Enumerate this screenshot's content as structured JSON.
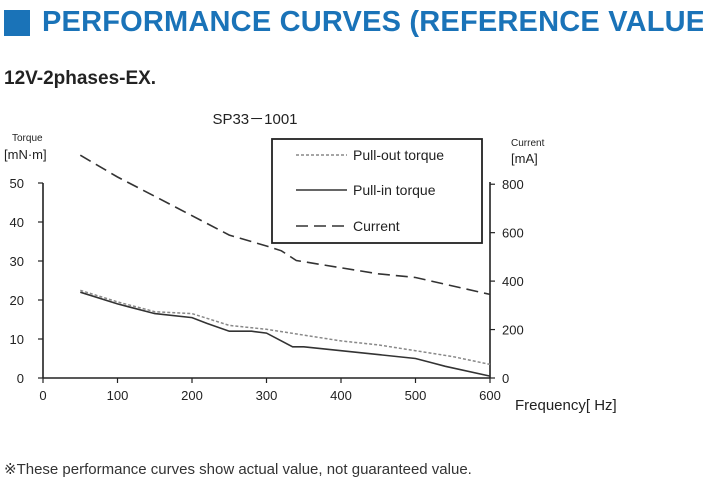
{
  "header": {
    "title": "PERFORMANCE CURVES (REFERENCE VALUE)",
    "accent_color": "#1a73b8"
  },
  "subtitle": "12V-2phases-EX.",
  "footnote": "※These performance curves show actual value, not guaranteed value.",
  "chart_data": {
    "type": "line",
    "title": "SP33－1001",
    "xlabel": "Frequency[ Hz]",
    "ylabel_left": {
      "name": "Torque",
      "unit": "[mN·m]"
    },
    "ylabel_right": {
      "name": "Current",
      "unit": "[mA]"
    },
    "xlim": [
      0,
      600
    ],
    "ylim_left": [
      0,
      50
    ],
    "ylim_right": [
      0,
      900
    ],
    "x_ticks": [
      0,
      100,
      200,
      300,
      400,
      500,
      600
    ],
    "y_left_ticks": [
      0,
      10,
      20,
      30,
      40,
      50
    ],
    "y_right_ticks": [
      0,
      200,
      400,
      600,
      800
    ],
    "grid": false,
    "legend_position": "top-right",
    "series": [
      {
        "name": "Pull-out torque",
        "axis": "left",
        "style": "dotted",
        "color": "#888888",
        "x": [
          50,
          100,
          150,
          200,
          250,
          300,
          350,
          400,
          450,
          500,
          550,
          600
        ],
        "y": [
          22.5,
          19.5,
          17.0,
          16.5,
          13.5,
          12.5,
          11.0,
          9.5,
          8.5,
          7.0,
          5.5,
          3.5
        ]
      },
      {
        "name": "Pull-in torque",
        "axis": "left",
        "style": "solid",
        "color": "#333333",
        "x": [
          50,
          100,
          150,
          200,
          220,
          250,
          280,
          300,
          320,
          335,
          350,
          400,
          450,
          500,
          520,
          540,
          600
        ],
        "y": [
          22.0,
          19.0,
          16.5,
          15.5,
          14.0,
          12.0,
          12.0,
          11.5,
          9.5,
          8.0,
          8.0,
          7.0,
          6.0,
          5.0,
          4.0,
          3.0,
          0.5
        ]
      },
      {
        "name": "Current",
        "axis": "right",
        "style": "dashed",
        "color": "#333333",
        "x": [
          50,
          100,
          150,
          200,
          250,
          300,
          320,
          340,
          400,
          450,
          500,
          550,
          600
        ],
        "y": [
          920,
          830,
          750,
          670,
          590,
          545,
          525,
          485,
          455,
          430,
          415,
          380,
          345
        ]
      }
    ]
  }
}
